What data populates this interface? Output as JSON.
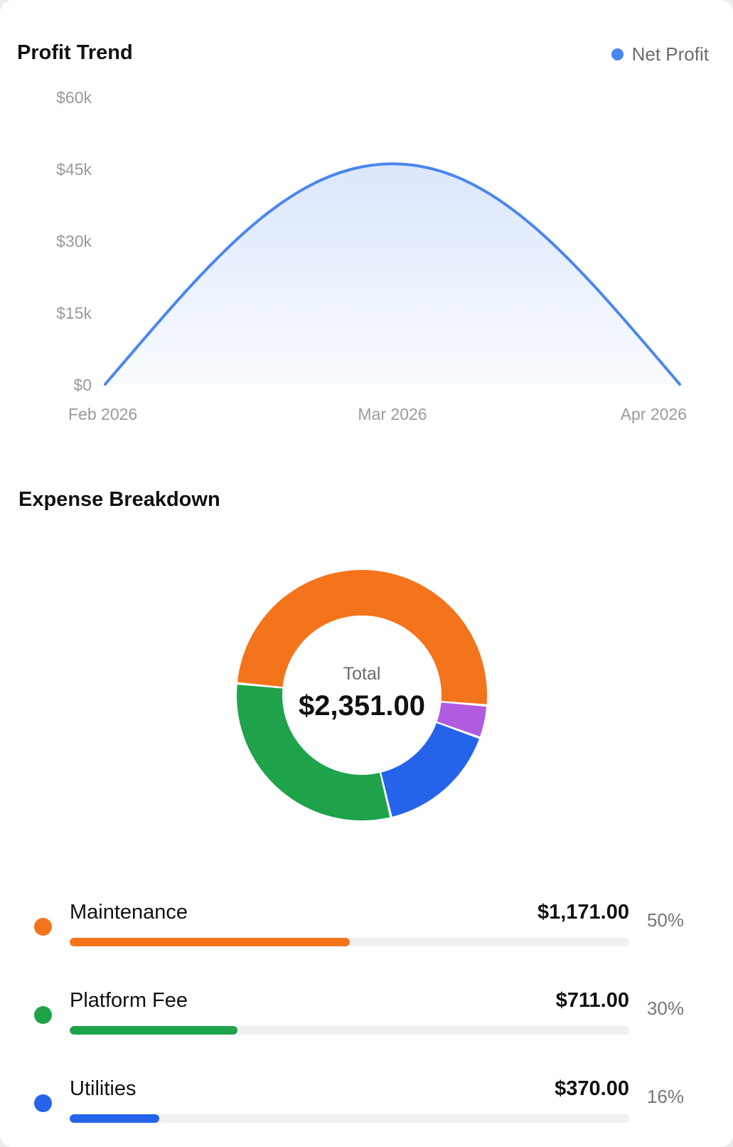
{
  "profit_trend": {
    "title": "Profit Trend",
    "legend_label": "Net Profit",
    "line_color": "#4a86f0"
  },
  "expense_breakdown": {
    "title": "Expense Breakdown",
    "total_label": "Total",
    "total_value": "$2,351.00",
    "items": [
      {
        "name": "Maintenance",
        "amount": "$1,171.00",
        "percent": "50%",
        "share": 0.5,
        "color": "#f4741c"
      },
      {
        "name": "Platform Fee",
        "amount": "$711.00",
        "percent": "30%",
        "share": 0.3,
        "color": "#1ea34a"
      },
      {
        "name": "Utilities",
        "amount": "$370.00",
        "percent": "16%",
        "share": 0.16,
        "color": "#2563eb"
      }
    ]
  },
  "chart_data": [
    {
      "type": "area",
      "title": "Profit Trend",
      "x": [
        "Feb 2026",
        "Mar 2026",
        "Apr 2026"
      ],
      "series": [
        {
          "name": "Net Profit",
          "values": [
            0,
            46000,
            0
          ]
        }
      ],
      "ylim": [
        0,
        60000
      ],
      "yticks": [
        "$0",
        "$15k",
        "$30k",
        "$45k",
        "$60k"
      ],
      "grid": false,
      "legend": "top-right"
    },
    {
      "type": "pie",
      "title": "Expense Breakdown",
      "labels": [
        "Maintenance",
        "Platform Fee",
        "Utilities",
        ""
      ],
      "values": [
        1171,
        711,
        370,
        99
      ],
      "colors": [
        "#f4741c",
        "#1ea34a",
        "#2563eb",
        "#b05be0"
      ]
    }
  ]
}
